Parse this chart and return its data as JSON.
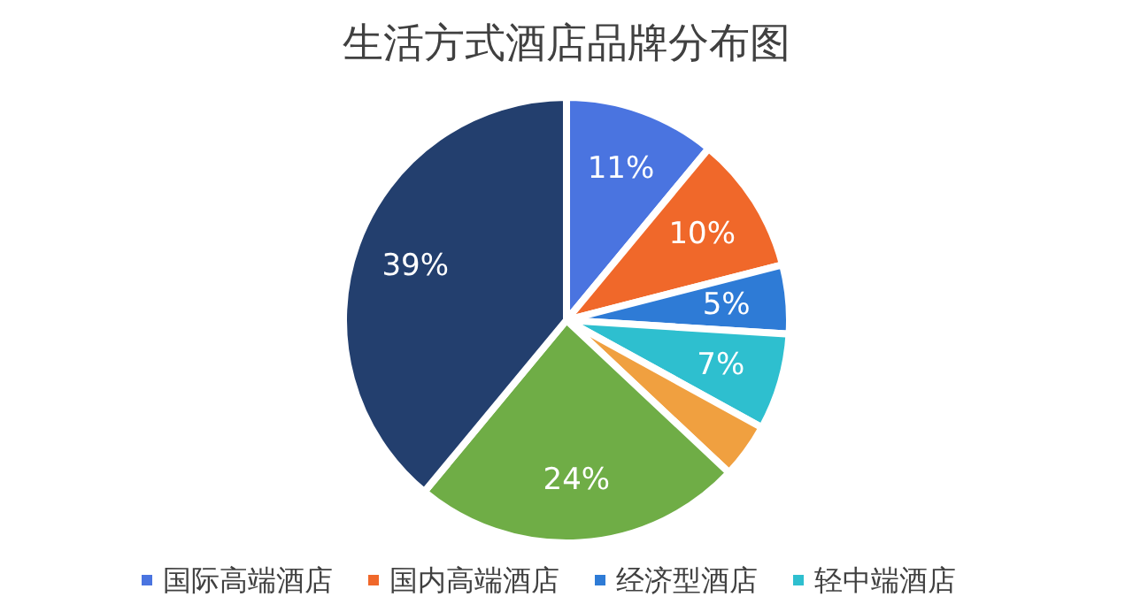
{
  "chart_data": {
    "type": "pie",
    "title": "生活方式酒店品牌分布图",
    "categories": [
      "国际高端酒店",
      "国内高端酒店",
      "经济型酒店",
      "轻中端酒店",
      null,
      null,
      null
    ],
    "values": [
      11,
      10,
      5,
      7,
      4,
      24,
      39
    ],
    "colors": [
      "#4a74e0",
      "#f0682a",
      "#2e7bd6",
      "#2ebfcf",
      "#f0a040",
      "#6fad46",
      "#233f6e"
    ],
    "value_labels": [
      "11%",
      "10%",
      "5%",
      "7%",
      null,
      "24%",
      "39%"
    ],
    "legend": "bottom"
  }
}
